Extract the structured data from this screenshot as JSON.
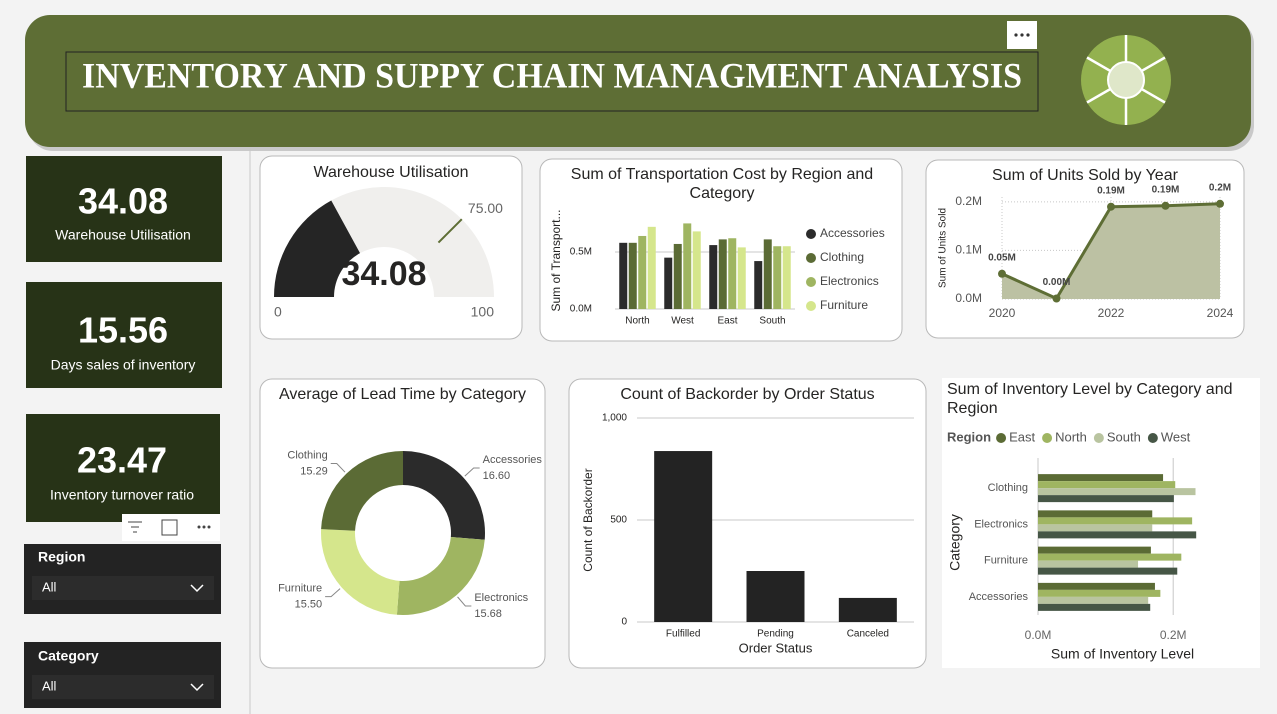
{
  "header": {
    "title": "INVENTORY AND SUPPY CHAIN MANAGMENT ANALYSIS"
  },
  "kpis": [
    {
      "value": 34.08,
      "label": "Warehouse Utilisation"
    },
    {
      "value": 15.56,
      "label": "Days sales of inventory"
    },
    {
      "value": 23.47,
      "label": "Inventory turnover ratio"
    }
  ],
  "slicers": [
    {
      "label": "Region",
      "selection": "All"
    },
    {
      "label": "Category",
      "selection": "All"
    }
  ],
  "chart_data": [
    {
      "type": "gauge",
      "title": "Warehouse Utilisation",
      "value": 34.08,
      "range": [
        0,
        100
      ],
      "target": {
        "value": 75,
        "label": "75.00"
      },
      "color": "#252525",
      "track_color": "#f0efed",
      "target_color": "#5e6e35"
    },
    {
      "type": "bar",
      "title": "Sum of Transportation Cost by Region and Category",
      "y_label": "Sum of Transport...",
      "categories": [
        "North",
        "West",
        "East",
        "South"
      ],
      "series": [
        {
          "name": "Accessories",
          "color": "#2b2b2b",
          "values": [
            580000,
            450000,
            560000,
            420000
          ]
        },
        {
          "name": "Clothing",
          "color": "#5b6b35",
          "values": [
            580000,
            570000,
            610000,
            610000
          ]
        },
        {
          "name": "Electronics",
          "color": "#9fb561",
          "values": [
            640000,
            750000,
            620000,
            550000
          ]
        },
        {
          "name": "Furniture",
          "color": "#d5e68c",
          "values": [
            720000,
            680000,
            540000,
            550000
          ]
        }
      ],
      "ylim": [
        0,
        850000
      ],
      "yticks": [
        {
          "value": 0,
          "label": "0.0M"
        },
        {
          "value": 500000,
          "label": "0.5M"
        }
      ],
      "grid": true,
      "legend": "right"
    },
    {
      "type": "area",
      "title": "Sum of Units Sold by Year",
      "y_label": "Sum of Units Sold",
      "x": [
        2020,
        2021,
        2022,
        2023,
        2024
      ],
      "values": [
        52000,
        1000,
        190000,
        192000,
        196000
      ],
      "value_labels": [
        "0.05M",
        "0.00M",
        "0.19M",
        "0.19M",
        "0.2M"
      ],
      "color": "#5e6e35",
      "fill": "#bcc1a3",
      "xlim": [
        2020,
        2024
      ],
      "xticks": [
        2020,
        2022,
        2024
      ],
      "ylim": [
        0,
        210000
      ],
      "yticks": [
        {
          "value": 0,
          "label": "0.0M"
        },
        {
          "value": 100000,
          "label": "0.1M"
        },
        {
          "value": 200000,
          "label": "0.2M"
        }
      ],
      "grid": true
    },
    {
      "type": "donut",
      "title": "Average of Lead Time by Category",
      "categories": [
        "Accessories",
        "Electronics",
        "Furniture",
        "Clothing"
      ],
      "values": [
        16.6,
        15.68,
        15.5,
        15.29
      ],
      "value_labels": [
        "16.60",
        "15.68",
        "15.50",
        "15.29"
      ],
      "colors": [
        "#2b2b2b",
        "#9fb561",
        "#d5e68c",
        "#5b6b35"
      ]
    },
    {
      "type": "bar",
      "title": "Count of Backorder by Order Status",
      "x_label": "Order Status",
      "y_label": "Count of Backorder",
      "categories": [
        "Fulfilled",
        "Pending",
        "Canceled"
      ],
      "values": [
        838,
        250,
        118
      ],
      "color": "#232323",
      "ylim": [
        0,
        1000
      ],
      "yticks": [
        0,
        500,
        {
          "value": 1000,
          "label": "1,000"
        }
      ],
      "grid": true
    },
    {
      "type": "bar",
      "orientation": "horizontal",
      "title": "Sum of Inventory Level by Category and Region",
      "x_label": "Sum of Inventory Level",
      "y_label": "Category",
      "legend_title": "Region",
      "categories": [
        "Clothing",
        "Electronics",
        "Furniture",
        "Accessories"
      ],
      "series": [
        {
          "name": "East",
          "color": "#5b6b35",
          "values": [
            185000,
            169000,
            167000,
            173000
          ]
        },
        {
          "name": "North",
          "color": "#9fb561",
          "values": [
            203000,
            228000,
            212000,
            181000
          ]
        },
        {
          "name": "South",
          "color": "#b9c4a0",
          "values": [
            233000,
            169000,
            148000,
            163000
          ]
        },
        {
          "name": "West",
          "color": "#465646",
          "values": [
            201000,
            234000,
            206000,
            166000
          ]
        }
      ],
      "xlim": [
        0,
        250000
      ],
      "xticks": [
        {
          "value": 0,
          "label": "0.0M"
        },
        {
          "value": 200000,
          "label": "0.2M"
        }
      ],
      "grid": true,
      "legend": "top"
    }
  ]
}
